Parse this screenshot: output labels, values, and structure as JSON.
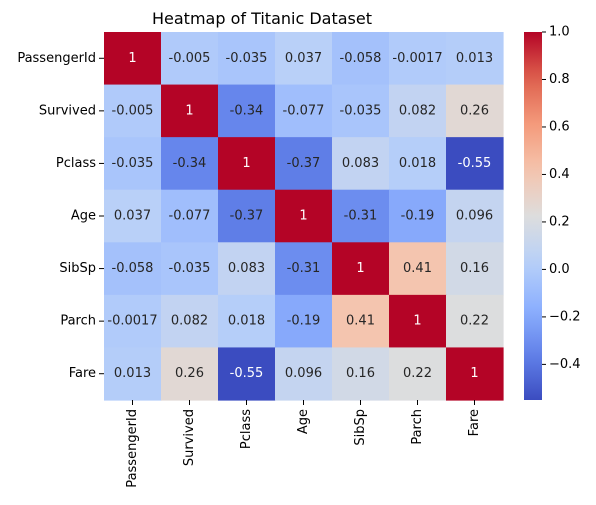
{
  "chart_data": {
    "type": "heatmap",
    "title": "Heatmap of Titanic Dataset",
    "xlabel": "",
    "ylabel": "",
    "row_labels": [
      "PassengerId",
      "Survived",
      "Pclass",
      "Age",
      "SibSp",
      "Parch",
      "Fare"
    ],
    "col_labels": [
      "PassengerId",
      "Survived",
      "Pclass",
      "Age",
      "SibSp",
      "Parch",
      "Fare"
    ],
    "values": [
      [
        1,
        -0.005,
        -0.035,
        0.037,
        -0.058,
        -0.0017,
        0.013
      ],
      [
        -0.005,
        1,
        -0.34,
        -0.077,
        -0.035,
        0.082,
        0.26
      ],
      [
        -0.035,
        -0.34,
        1,
        -0.37,
        0.083,
        0.018,
        -0.55
      ],
      [
        0.037,
        -0.077,
        -0.37,
        1,
        -0.31,
        -0.19,
        0.096
      ],
      [
        -0.058,
        -0.035,
        0.083,
        -0.31,
        1,
        0.41,
        0.16
      ],
      [
        -0.0017,
        0.082,
        0.018,
        -0.19,
        0.41,
        1,
        0.22
      ],
      [
        0.013,
        0.26,
        -0.55,
        0.096,
        0.16,
        0.22,
        1
      ]
    ],
    "annotations": [
      [
        "1",
        "-0.005",
        "-0.035",
        "0.037",
        "-0.058",
        "-0.0017",
        "0.013"
      ],
      [
        "-0.005",
        "1",
        "-0.34",
        "-0.077",
        "-0.035",
        "0.082",
        "0.26"
      ],
      [
        "-0.035",
        "-0.34",
        "1",
        "-0.37",
        "0.083",
        "0.018",
        "-0.55"
      ],
      [
        "0.037",
        "-0.077",
        "-0.37",
        "1",
        "-0.31",
        "-0.19",
        "0.096"
      ],
      [
        "-0.058",
        "-0.035",
        "0.083",
        "-0.31",
        "1",
        "0.41",
        "0.16"
      ],
      [
        "-0.0017",
        "0.082",
        "0.018",
        "-0.19",
        "0.41",
        "1",
        "0.22"
      ],
      [
        "0.013",
        "0.26",
        "-0.55",
        "0.096",
        "0.16",
        "0.22",
        "1"
      ]
    ],
    "colormap": "coolwarm",
    "vmin": -0.55,
    "vmax": 1.0,
    "colorbar_ticks": [
      1.0,
      0.8,
      0.6,
      0.4,
      0.2,
      0.0,
      -0.2,
      -0.4
    ],
    "colorbar_tick_labels": [
      "1.0",
      "0.8",
      "0.6",
      "0.4",
      "0.2",
      "0.0",
      "−0.2",
      "−0.4"
    ],
    "grid": false,
    "legend": "colorbar-right"
  }
}
